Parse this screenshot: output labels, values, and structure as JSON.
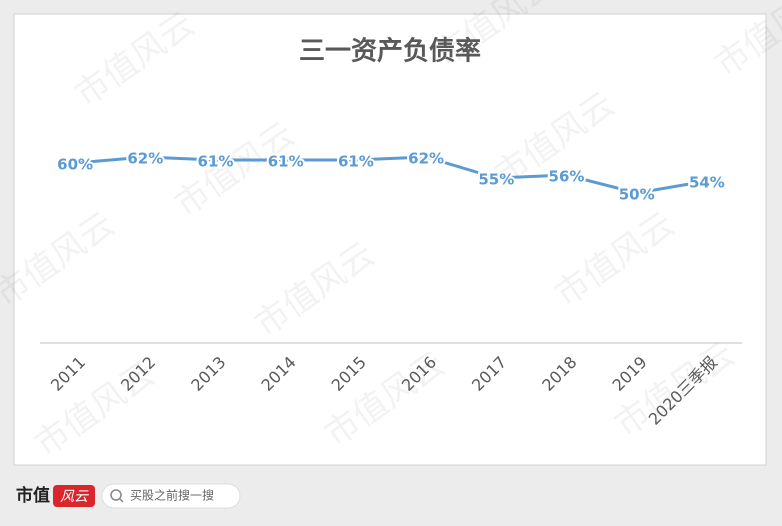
{
  "chart_data": {
    "type": "line",
    "title": "三一资产负债率",
    "categories": [
      "2011",
      "2012",
      "2013",
      "2014",
      "2015",
      "2016",
      "2017",
      "2018",
      "2019",
      "2020三季报"
    ],
    "values": [
      60,
      62,
      61,
      61,
      61,
      62,
      55,
      56,
      50,
      54
    ],
    "value_labels": [
      "60%",
      "62%",
      "61%",
      "61%",
      "61%",
      "62%",
      "55%",
      "56%",
      "50%",
      "54%"
    ],
    "color": "#5b9bd5",
    "ylim": [
      0,
      80
    ]
  },
  "watermark": "市值风云",
  "footer": {
    "brand": "市值",
    "brand_logo": "风云",
    "search_placeholder": "买股之前搜一搜"
  }
}
